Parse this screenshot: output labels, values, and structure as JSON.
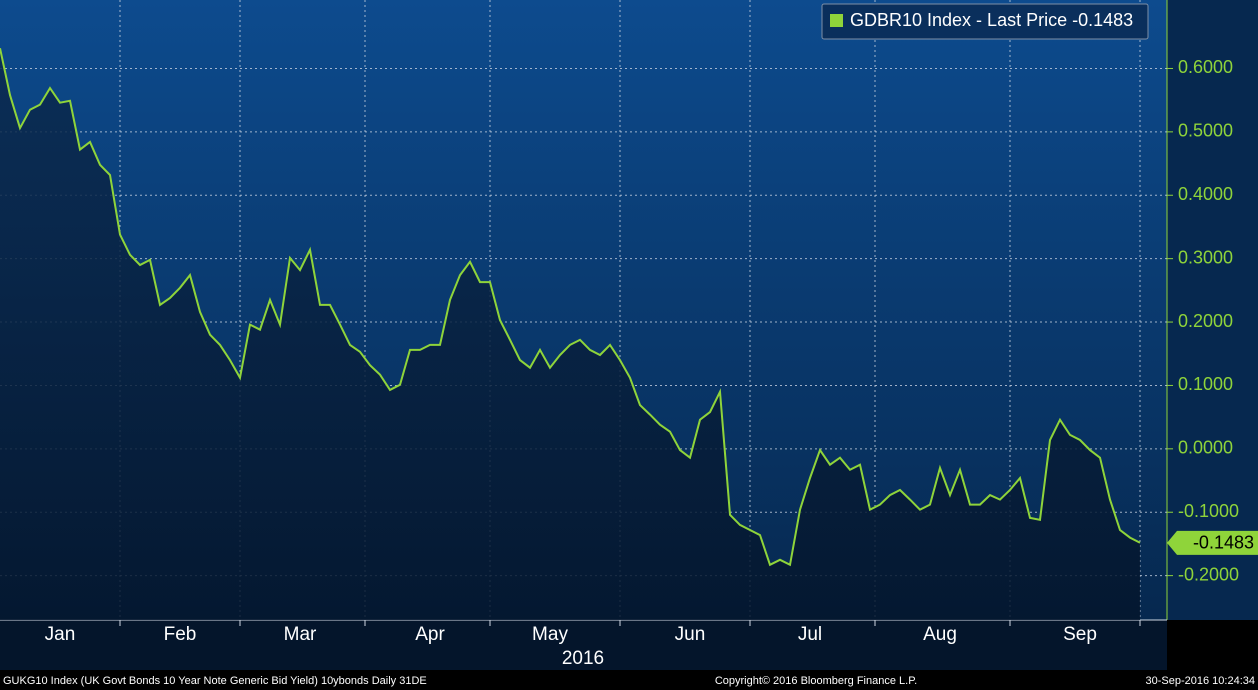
{
  "chart_data": {
    "type": "line",
    "categories": [
      null,
      null,
      null,
      null,
      null,
      null,
      "Jan",
      null,
      null,
      null,
      null,
      null,
      null,
      null,
      null,
      null,
      null,
      null,
      "Feb",
      null,
      null,
      null,
      null,
      null,
      null,
      null,
      null,
      null,
      null,
      null,
      "Mar",
      null,
      null,
      null,
      null,
      null,
      null,
      null,
      null,
      null,
      null,
      null,
      null,
      "Apr",
      null,
      null,
      null,
      null,
      null,
      null,
      null,
      null,
      null,
      null,
      null,
      "May",
      null,
      null,
      null,
      null,
      null,
      null,
      null,
      null,
      null,
      null,
      null,
      null,
      null,
      "Jun",
      null,
      null,
      null,
      null,
      null,
      null,
      null,
      null,
      null,
      null,
      null,
      "Jul",
      null,
      null,
      null,
      null,
      null,
      null,
      null,
      null,
      null,
      null,
      null,
      null,
      "Aug",
      null,
      null,
      null,
      null,
      null,
      null,
      null,
      null,
      null,
      null,
      null,
      null,
      null,
      "Sep",
      null,
      null,
      null,
      null,
      null,
      null
    ],
    "year_label": "2016",
    "series": [
      {
        "name": "GDBR10 Index - Last Price",
        "color": "#8fd43a",
        "values": [
          0.632,
          0.558,
          0.506,
          0.535,
          0.543,
          0.569,
          0.546,
          0.549,
          0.472,
          0.484,
          0.448,
          0.432,
          0.338,
          0.306,
          0.29,
          0.298,
          0.227,
          0.238,
          0.254,
          0.274,
          0.216,
          0.18,
          0.164,
          0.14,
          0.112,
          0.196,
          0.188,
          0.235,
          0.196,
          0.301,
          0.282,
          0.314,
          0.227,
          0.227,
          0.196,
          0.164,
          0.153,
          0.132,
          0.117,
          0.093,
          0.101,
          0.156,
          0.156,
          0.164,
          0.164,
          0.235,
          0.274,
          0.295,
          0.263,
          0.263,
          0.203,
          0.172,
          0.14,
          0.128,
          0.156,
          0.128,
          0.148,
          0.164,
          0.172,
          0.156,
          0.148,
          0.164,
          0.14,
          0.112,
          0.069,
          0.054,
          0.038,
          0.027,
          -0.002,
          -0.014,
          0.046,
          0.058,
          0.09,
          -0.104,
          -0.12,
          -0.128,
          -0.136,
          -0.183,
          -0.175,
          -0.183,
          -0.096,
          -0.046,
          -0.002,
          -0.025,
          -0.014,
          -0.033,
          -0.025,
          -0.096,
          -0.088,
          -0.073,
          -0.065,
          -0.08,
          -0.096,
          -0.088,
          -0.03,
          -0.073,
          -0.033,
          -0.088,
          -0.088,
          -0.073,
          -0.08,
          -0.065,
          -0.046,
          -0.109,
          -0.112,
          0.014,
          0.046,
          0.022,
          0.014,
          -0.002,
          -0.014,
          -0.08,
          -0.128,
          -0.14,
          -0.1483
        ]
      }
    ],
    "ylim": [
      -0.27,
      0.708
    ],
    "yticks": [
      {
        "value": 0.6,
        "label": "0.6000"
      },
      {
        "value": 0.5,
        "label": "0.5000"
      },
      {
        "value": 0.4,
        "label": "0.4000"
      },
      {
        "value": 0.3,
        "label": "0.3000"
      },
      {
        "value": 0.2,
        "label": "0.2000"
      },
      {
        "value": 0.1,
        "label": "0.1000"
      },
      {
        "value": 0,
        "label": "0.0000"
      },
      {
        "value": -0.1,
        "label": "-0.1000"
      },
      {
        "value": -0.2,
        "label": "-0.2000"
      }
    ],
    "grid": true,
    "legend": "top-right",
    "footer": {
      "left": "GUKG10 Index (UK Govt Bonds 10 Year Note Generic Bid Yield) 10ybonds  Daily 31DE",
      "center": "Copyright© 2016 Bloomberg Finance L.P.",
      "right": "30-Sep-2016 10:24:34"
    }
  }
}
